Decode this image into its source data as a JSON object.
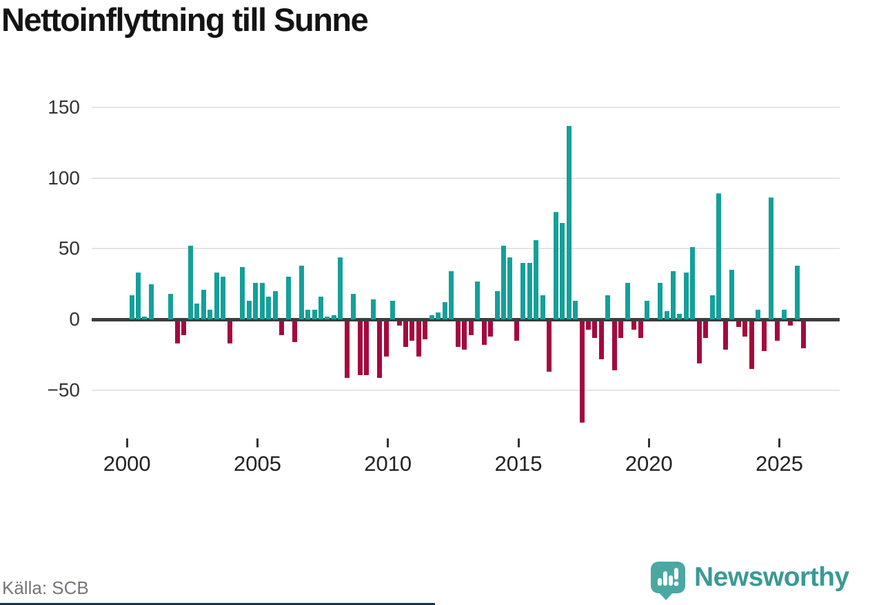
{
  "title": "Nettoinflyttning till Sunne",
  "source": "Källa: SCB",
  "brand": {
    "name": "Newsworthy",
    "icon": "speech-bubble-bar-chart-exclamation"
  },
  "colors": {
    "positive": "#14a09a",
    "negative": "#a5083e",
    "axis": "#3d3d3d",
    "grid": "#e4e4e4",
    "title_text": "#141414",
    "tick_text": "#222222",
    "source_text": "#75757a",
    "brand_teal": "#3a9a94",
    "logo_bubble": "#4aa8a2",
    "bottom_strip_navy": "#16324e"
  },
  "chart_data": {
    "type": "bar",
    "title": "Nettoinflyttning till Sunne",
    "xlabel": "",
    "ylabel": "",
    "frequency": "quarterly",
    "period_start": "2000-Q1",
    "period_end": "2025-Q4",
    "values": [
      17,
      33,
      2,
      25,
      0,
      0,
      18,
      -16,
      -10,
      52,
      11,
      21,
      7,
      33,
      30,
      -16,
      0,
      37,
      13,
      26,
      26,
      16,
      20,
      -10,
      30,
      -15,
      38,
      7,
      7,
      16,
      2,
      3,
      44,
      -40,
      18,
      -38,
      -38,
      14,
      -40,
      -25,
      13,
      -3,
      -18,
      -14,
      -25,
      -13,
      3,
      5,
      12,
      34,
      -18,
      -20,
      -10,
      27,
      -17,
      -11,
      20,
      52,
      44,
      -14,
      40,
      40,
      56,
      17,
      -36,
      76,
      68,
      137,
      13,
      -72,
      -6,
      -12,
      -27,
      17,
      -35,
      -12,
      26,
      -6,
      -12,
      13,
      0,
      26,
      6,
      34,
      4,
      33,
      51,
      -30,
      -12,
      17,
      89,
      -20,
      35,
      -4,
      -11,
      -34,
      7,
      -21,
      86,
      -14,
      7,
      -3,
      38,
      -19
    ],
    "positive_color": "#14a09a",
    "negative_color": "#a5083e",
    "yticks": [
      150,
      100,
      50,
      0,
      -50
    ],
    "xticks": [
      2000,
      2005,
      2010,
      2015,
      2020,
      2025
    ],
    "ylim": [
      -80,
      160
    ],
    "grid": true,
    "legend": "none",
    "source": "Källa: SCB"
  }
}
